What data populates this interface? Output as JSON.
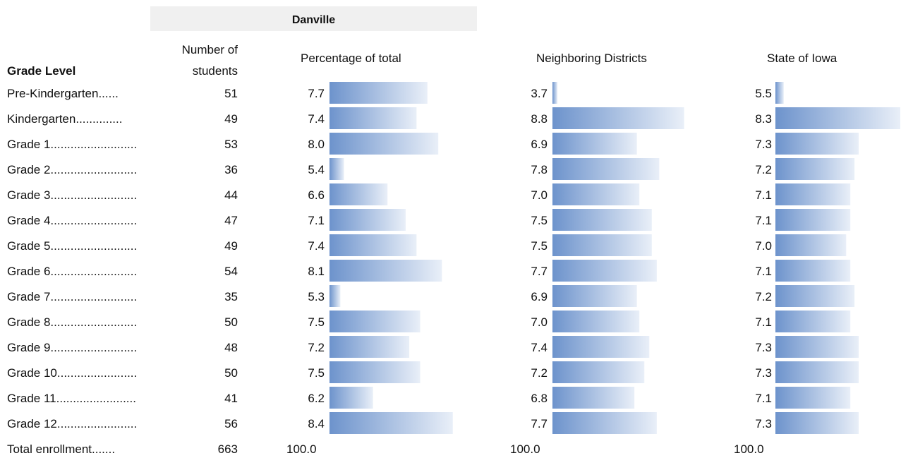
{
  "header": {
    "district": "Danville",
    "grade_level": "Grade Level",
    "students_line1": "Number of",
    "students_line2": "students",
    "pct_total": "Percentage of total",
    "neighboring": "Neighboring Districts",
    "state": "State of Iowa"
  },
  "colors": {
    "bar_start": "#6d93cc",
    "bar_end": "#e9eff8"
  },
  "chart_data": {
    "type": "table",
    "rows": [
      {
        "label": "Pre-Kindergarten......",
        "students": "51",
        "pct": 7.7,
        "neighboring": 3.7,
        "state": 5.5
      },
      {
        "label": "Kindergarten..............",
        "students": "49",
        "pct": 7.4,
        "neighboring": 8.8,
        "state": 8.3
      },
      {
        "label": "Grade 1..........................",
        "students": "53",
        "pct": 8.0,
        "neighboring": 6.9,
        "state": 7.3
      },
      {
        "label": "Grade 2..........................",
        "students": "36",
        "pct": 5.4,
        "neighboring": 7.8,
        "state": 7.2
      },
      {
        "label": "Grade 3..........................",
        "students": "44",
        "pct": 6.6,
        "neighboring": 7.0,
        "state": 7.1
      },
      {
        "label": "Grade 4..........................",
        "students": "47",
        "pct": 7.1,
        "neighboring": 7.5,
        "state": 7.1
      },
      {
        "label": "Grade 5..........................",
        "students": "49",
        "pct": 7.4,
        "neighboring": 7.5,
        "state": 7.0
      },
      {
        "label": "Grade 6..........................",
        "students": "54",
        "pct": 8.1,
        "neighboring": 7.7,
        "state": 7.1
      },
      {
        "label": "Grade 7..........................",
        "students": "35",
        "pct": 5.3,
        "neighboring": 6.9,
        "state": 7.2
      },
      {
        "label": "Grade 8..........................",
        "students": "50",
        "pct": 7.5,
        "neighboring": 7.0,
        "state": 7.1
      },
      {
        "label": "Grade 9..........................",
        "students": "48",
        "pct": 7.2,
        "neighboring": 7.4,
        "state": 7.3
      },
      {
        "label": "Grade 10........................",
        "students": "50",
        "pct": 7.5,
        "neighboring": 7.2,
        "state": 7.3
      },
      {
        "label": "Grade 11........................",
        "students": "41",
        "pct": 6.2,
        "neighboring": 6.8,
        "state": 7.1
      },
      {
        "label": "Grade 12........................",
        "students": "56",
        "pct": 8.4,
        "neighboring": 7.7,
        "state": 7.3
      }
    ],
    "total": {
      "label": "Total enrollment.......",
      "students": "663",
      "pct": "100.0",
      "neighboring": "100.0",
      "state": "100.0"
    }
  }
}
